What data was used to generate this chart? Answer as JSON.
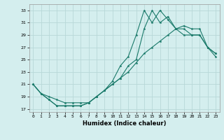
{
  "title": "",
  "xlabel": "Humidex (Indice chaleur)",
  "bg_color": "#d4eeee",
  "grid_color": "#b8d8d8",
  "line_color": "#1a7a6a",
  "xlim": [
    -0.5,
    23.5
  ],
  "ylim": [
    16.5,
    34.0
  ],
  "yticks": [
    17,
    19,
    21,
    23,
    25,
    27,
    29,
    31,
    33
  ],
  "xticks": [
    0,
    1,
    2,
    3,
    4,
    5,
    6,
    7,
    8,
    9,
    10,
    11,
    12,
    13,
    14,
    15,
    16,
    17,
    18,
    19,
    20,
    21,
    22,
    23
  ],
  "line1_x": [
    0,
    1,
    2,
    3,
    4,
    5,
    6,
    7,
    8,
    9,
    10,
    11,
    12,
    13,
    14,
    15,
    16,
    17,
    18,
    19,
    20,
    21,
    22,
    23
  ],
  "line1_y": [
    21.0,
    19.5,
    18.5,
    17.5,
    17.5,
    17.5,
    17.5,
    18.0,
    19.0,
    20.0,
    21.5,
    24.0,
    25.5,
    29.0,
    33.0,
    31.0,
    33.0,
    31.5,
    30.0,
    29.0,
    29.0,
    29.0,
    27.0,
    26.0
  ],
  "line2_x": [
    0,
    1,
    2,
    3,
    4,
    5,
    6,
    7,
    8,
    9,
    10,
    11,
    12,
    13,
    14,
    15,
    16,
    17,
    18,
    19,
    20,
    21,
    22,
    23
  ],
  "line2_y": [
    21.0,
    19.5,
    18.5,
    17.5,
    17.5,
    17.5,
    17.5,
    18.0,
    19.0,
    20.0,
    21.0,
    22.0,
    24.0,
    25.0,
    30.0,
    33.0,
    31.0,
    32.0,
    30.0,
    30.0,
    29.0,
    29.0,
    27.0,
    26.0
  ],
  "line3_x": [
    0,
    1,
    2,
    3,
    4,
    5,
    6,
    7,
    8,
    9,
    10,
    11,
    12,
    13,
    14,
    15,
    16,
    17,
    18,
    19,
    20,
    21,
    22,
    23
  ],
  "line3_y": [
    21.0,
    19.5,
    19.0,
    18.5,
    18.0,
    18.0,
    18.0,
    18.0,
    19.0,
    20.0,
    21.0,
    22.0,
    23.0,
    24.5,
    26.0,
    27.0,
    28.0,
    29.0,
    30.0,
    30.5,
    30.0,
    30.0,
    27.0,
    25.5
  ]
}
